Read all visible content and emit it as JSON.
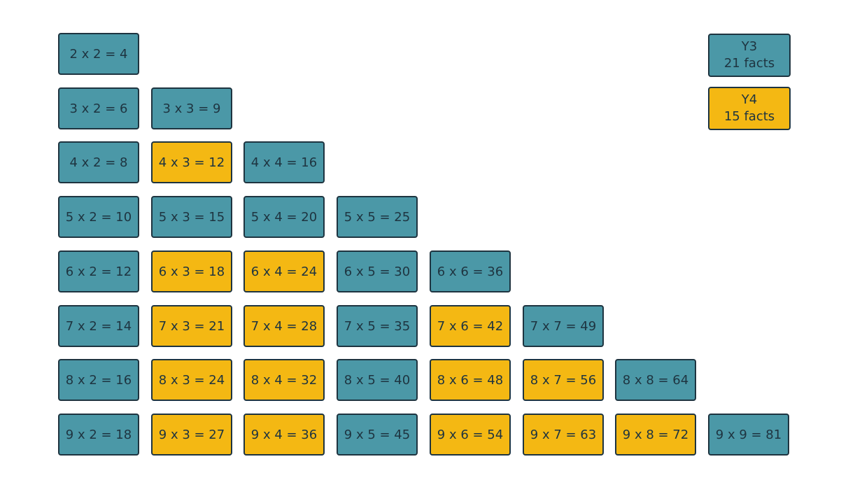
{
  "colors": {
    "y3": "#4b98a7",
    "y4": "#f4b813",
    "border": "#1e3440"
  },
  "legend": [
    {
      "key": "y3",
      "label": "Y3",
      "sub": "21 facts"
    },
    {
      "key": "y4",
      "label": "Y4",
      "sub": "15 facts"
    }
  ],
  "rows": [
    {
      "a": 2,
      "facts": [
        {
          "text": "2 x 2 = 4",
          "year": "y3"
        }
      ]
    },
    {
      "a": 3,
      "facts": [
        {
          "text": "3 x 2 = 6",
          "year": "y3"
        },
        {
          "text": "3 x 3 = 9",
          "year": "y3"
        }
      ]
    },
    {
      "a": 4,
      "facts": [
        {
          "text": "4 x 2 = 8",
          "year": "y3"
        },
        {
          "text": "4 x 3 = 12",
          "year": "y4"
        },
        {
          "text": "4 x 4 = 16",
          "year": "y3"
        }
      ]
    },
    {
      "a": 5,
      "facts": [
        {
          "text": "5 x 2 = 10",
          "year": "y3"
        },
        {
          "text": "5 x 3 = 15",
          "year": "y3"
        },
        {
          "text": "5 x 4 = 20",
          "year": "y3"
        },
        {
          "text": "5 x 5 = 25",
          "year": "y3"
        }
      ]
    },
    {
      "a": 6,
      "facts": [
        {
          "text": "6 x 2 = 12",
          "year": "y3"
        },
        {
          "text": "6 x 3 = 18",
          "year": "y4"
        },
        {
          "text": "6 x 4 = 24",
          "year": "y4"
        },
        {
          "text": "6 x 5 = 30",
          "year": "y3"
        },
        {
          "text": "6 x 6 = 36",
          "year": "y3"
        }
      ]
    },
    {
      "a": 7,
      "facts": [
        {
          "text": "7 x 2 = 14",
          "year": "y3"
        },
        {
          "text": "7 x 3 = 21",
          "year": "y4"
        },
        {
          "text": "7 x 4 = 28",
          "year": "y4"
        },
        {
          "text": "7 x 5 = 35",
          "year": "y3"
        },
        {
          "text": "7 x 6 = 42",
          "year": "y4"
        },
        {
          "text": "7 x 7 = 49",
          "year": "y3"
        }
      ]
    },
    {
      "a": 8,
      "facts": [
        {
          "text": "8 x 2 = 16",
          "year": "y3"
        },
        {
          "text": "8 x 3 = 24",
          "year": "y4"
        },
        {
          "text": "8 x 4 = 32",
          "year": "y4"
        },
        {
          "text": "8 x 5 = 40",
          "year": "y3"
        },
        {
          "text": "8 x 6 = 48",
          "year": "y4"
        },
        {
          "text": "8 x 7 = 56",
          "year": "y4"
        },
        {
          "text": "8 x 8 = 64",
          "year": "y3"
        }
      ]
    },
    {
      "a": 9,
      "facts": [
        {
          "text": "9 x 2 = 18",
          "year": "y3"
        },
        {
          "text": "9 x 3 = 27",
          "year": "y4"
        },
        {
          "text": "9 x 4 = 36",
          "year": "y4"
        },
        {
          "text": "9 x 5 = 45",
          "year": "y3"
        },
        {
          "text": "9 x 6 = 54",
          "year": "y4"
        },
        {
          "text": "9 x 7 = 63",
          "year": "y4"
        },
        {
          "text": "9 x 8 = 72",
          "year": "y4"
        },
        {
          "text": "9 x 9 = 81",
          "year": "y3"
        }
      ]
    }
  ]
}
